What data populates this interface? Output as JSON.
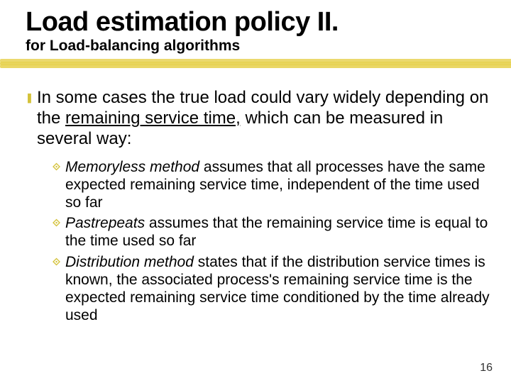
{
  "title": "Load estimation policy II.",
  "subtitle": "for Load-balancing algorithms",
  "underline_color": "#e6d04a",
  "level1_bullet_glyph": "❚",
  "level2_bullet_glyph": "⟐",
  "main_point_pre": "In some cases the true load could vary widely depending on the ",
  "main_point_underlined": "remaining service time,",
  "main_point_post": " which can be measured in several way:",
  "sub1_term": "Memoryless method",
  "sub1_rest": " assumes that all processes have the same expected remaining service time, independent of the time used so far",
  "sub2_term": "Pastrepeats",
  "sub2_rest": " assumes that the remaining service time is equal to the time used so far",
  "sub3_term": "Distribution method",
  "sub3_rest": " states that if the distribution service times is known, the associated process's remaining service time is the expected remaining service time conditioned by the time already used",
  "page_number": "16"
}
